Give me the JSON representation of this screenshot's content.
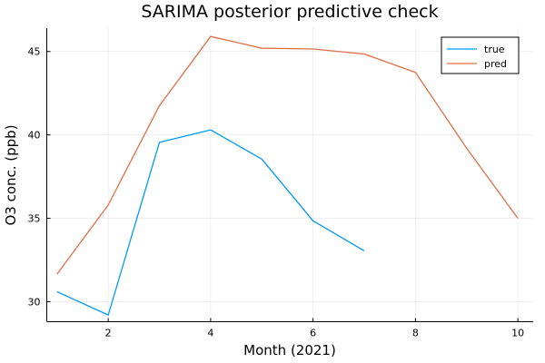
{
  "chart_data": {
    "type": "line",
    "title": "SARIMA posterior predictive check",
    "xlabel": "Month (2021)",
    "ylabel": "O3 conc. (ppb)",
    "xlim": [
      0.8,
      10.3
    ],
    "ylim": [
      28.8,
      46.4
    ],
    "xticks": [
      2,
      4,
      6,
      8,
      10
    ],
    "yticks": [
      30,
      35,
      40,
      45
    ],
    "grid": true,
    "legend_position": "top-right",
    "series": [
      {
        "name": "true",
        "color": "#009AFA",
        "x": [
          1,
          2,
          3,
          4,
          5,
          6,
          7
        ],
        "values": [
          30.6,
          29.2,
          39.55,
          40.3,
          38.55,
          34.85,
          33.05
        ]
      },
      {
        "name": "pred",
        "color": "#E26F46",
        "x": [
          1,
          2,
          3,
          4,
          5,
          6,
          7,
          8,
          9,
          10
        ],
        "values": [
          31.65,
          35.8,
          41.75,
          45.9,
          45.2,
          45.15,
          44.85,
          43.75,
          39.2,
          35.0
        ]
      }
    ]
  }
}
